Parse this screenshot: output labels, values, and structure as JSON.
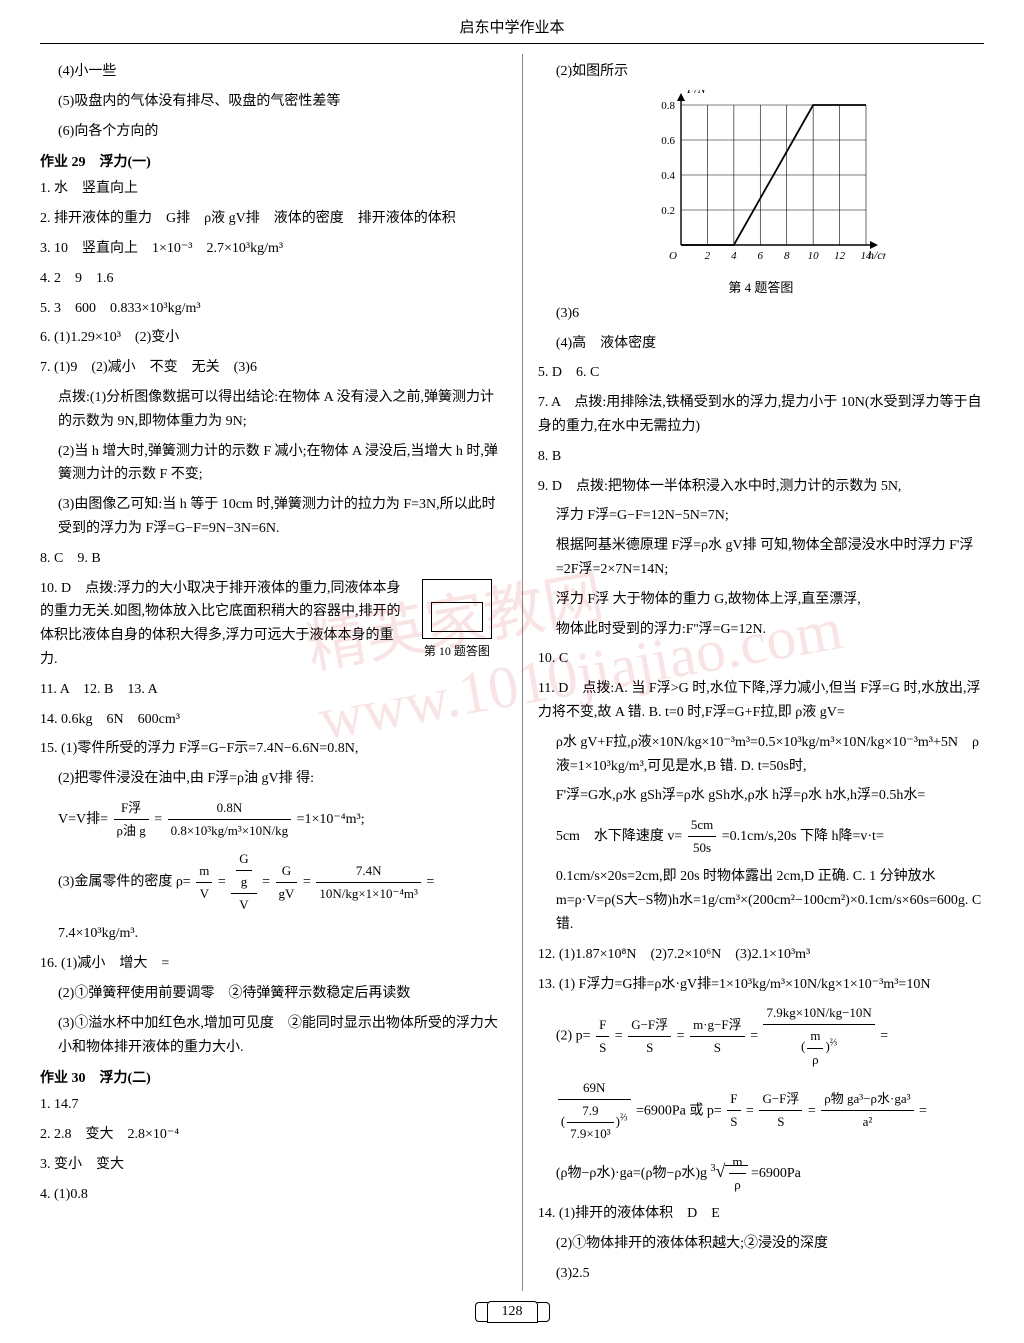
{
  "page_title": "启东中学作业本",
  "page_number": "128",
  "watermark": "精英家教网 www.1010jiajiao.com",
  "chart": {
    "type": "line",
    "xlabel": "h/cm",
    "ylabel": "F/N",
    "xticks": [
      0,
      2,
      4,
      6,
      8,
      10,
      12,
      14
    ],
    "yticks": [
      0,
      0.2,
      0.4,
      0.6,
      0.8
    ],
    "xlim": [
      0,
      14
    ],
    "ylim": [
      0,
      0.8
    ],
    "line_color": "#000000",
    "grid_color": "#000000",
    "bg_color": "#ffffff",
    "series": [
      {
        "x": 0,
        "y": 0
      },
      {
        "x": 4,
        "y": 0
      },
      {
        "x": 10,
        "y": 0.8
      },
      {
        "x": 14,
        "y": 0.8
      }
    ],
    "caption": "第 4 题答图"
  },
  "left": {
    "l01": "(4)小一些",
    "l02": "(5)吸盘内的气体没有排尽、吸盘的气密性差等",
    "l03": "(6)向各个方向的",
    "h29": "作业 29　浮力(一)",
    "a01": "1. 水　竖直向上",
    "a02": "2. 排开液体的重力　G排　ρ液 gV排　液体的密度　排开液体的体积",
    "a03": "3. 10　竖直向上　1×10⁻³　2.7×10³kg/m³",
    "a04": "4. 2　9　1.6",
    "a05": "5. 3　600　0.833×10³kg/m³",
    "a06": "6. (1)1.29×10³　(2)变小",
    "a07": "7. (1)9　(2)减小　不变　无关　(3)6",
    "a07p1": "点拨:(1)分析图像数据可以得出结论:在物体 A 没有浸入之前,弹簧测力计的示数为 9N,即物体重力为 9N;",
    "a07p2": "(2)当 h 增大时,弹簧测力计的示数 F 减小;在物体 A 浸没后,当增大 h 时,弹簧测力计的示数 F 不变;",
    "a07p3": "(3)由图像乙可知:当 h 等于 10cm 时,弹簧测力计的拉力为 F=3N,所以此时受到的浮力为 F浮=G−F=9N−3N=6N.",
    "a08": "8. C　9. B",
    "a10": "10. D　点拨:浮力的大小取决于排开液体的重力,同液体本身的重力无关.如图,物体放入比它底面积稍大的容器中,排开的体积比液体自身的体积大得多,浮力可远大于液体本身的重力.",
    "fig10cap": "第 10 题答图",
    "a11": "11. A　12. B　13. A",
    "a14": "14. 0.6kg　6N　600cm³",
    "a15_1": "15. (1)零件所受的浮力 F浮=G−F示=7.4N−6.6N=0.8N,",
    "a15_2": "(2)把零件浸没在油中,由 F浮=ρ油 gV排 得:",
    "a15_2v_lhs": "V=V排=",
    "a15_2v_f1n": "F浮",
    "a15_2v_f1d": "ρ油 g",
    "a15_2v_eq": "=",
    "a15_2v_f2n": "0.8N",
    "a15_2v_f2d": "0.8×10³kg/m³×10N/kg",
    "a15_2v_rhs": "=1×10⁻⁴m³;",
    "a15_3_lhs": "(3)金属零件的密度 ρ=",
    "a15_3_f1n": "m",
    "a15_3_f1d": "V",
    "a15_3_eq1": "=",
    "a15_3_f2an": "G",
    "a15_3_f2ad": "g",
    "a15_3_f2bd": "V",
    "a15_3_eq2": "=",
    "a15_3_f3n": "G",
    "a15_3_f3d": "gV",
    "a15_3_eq3": "=",
    "a15_3_f4n": "7.4N",
    "a15_3_f4d": "10N/kg×1×10⁻⁴m³",
    "a15_3_rhs": "=",
    "a15_3_res": "7.4×10³kg/m³.",
    "a16_1": "16. (1)减小　增大　=",
    "a16_2": "(2)①弹簧秤使用前要调零　②待弹簧秤示数稳定后再读数",
    "a16_3": "(3)①溢水杯中加红色水,增加可见度　②能同时显示出物体所受的浮力大小和物体排开液体的重力大小.",
    "h30": "作业 30　浮力(二)",
    "b01": "1. 14.7",
    "b02": "2. 2.8　变大　2.8×10⁻⁴",
    "b03": "3. 变小　变大",
    "b04": "4. (1)0.8"
  },
  "right": {
    "r02": "(2)如图所示",
    "r03": "(3)6",
    "r04": "(4)高　液体密度",
    "r05": "5. D　6. C",
    "r07": "7. A　点拨:用排除法,铁桶受到水的浮力,提力小于 10N(水受到浮力等于自身的重力,在水中无需拉力)",
    "r08": "8. B",
    "r09a": "9. D　点拨:把物体一半体积浸入水中时,测力计的示数为 5N,",
    "r09b": "浮力 F浮=G−F=12N−5N=7N;",
    "r09c": "根据阿基米德原理 F浮=ρ水 gV排 可知,物体全部浸没水中时浮力 F'浮=2F浮=2×7N=14N;",
    "r09d": "浮力 F浮 大于物体的重力 G,故物体上浮,直至漂浮,",
    "r09e": "物体此时受到的浮力:F''浮=G=12N.",
    "r10": "10. C",
    "r11a": "11. D　点拨:A. 当 F浮>G 时,水位下降,浮力减小,但当 F浮=G 时,水放出,浮力将不变,故 A 错. B. t=0 时,F浮=G+F拉,即 ρ液 gV=",
    "r11b": "ρ水 gV+F拉,ρ液×10N/kg×10⁻³m³=0.5×10³kg/m³×10N/kg×10⁻³m³+5N　ρ液=1×10³kg/m³,可见是水,B 错. D. t=50s时,",
    "r11c": "F'浮=G水,ρ水 gSh浮=ρ水 gSh水,ρ水 h浮=ρ水 h水,h浮=0.5h水=",
    "r11d_lhs": "5cm　水下降速度 v=",
    "r11d_n": "5cm",
    "r11d_d": "50s",
    "r11d_rhs": "=0.1cm/s,20s 下降 h降=v·t=",
    "r11e": "0.1cm/s×20s=2cm,即 20s 时物体露出 2cm,D 正确. C. 1 分钟放水 m=ρ·V=ρ(S大−S物)h水=1g/cm³×(200cm²−100cm²)×0.1cm/s×60s=600g. C 错.",
    "r12": "12. (1)1.87×10⁸N　(2)7.2×10⁶N　(3)2.1×10³m³",
    "r13_1a": "13. (1) F浮力=G排=ρ水·gV排=1×10³kg/m³×10N/kg×1×10⁻³m³=10N",
    "r13_2_lhs": "(2) p=",
    "r13_2_f1n": "F",
    "r13_2_f1d": "S",
    "r13_2_eq1": "=",
    "r13_2_f2n": "G−F浮",
    "r13_2_f2d": "S",
    "r13_2_eq2": "=",
    "r13_2_f3n": "m·g−F浮",
    "r13_2_f3d": "S",
    "r13_2_eq3": "=",
    "r13_2_f4n": "7.9kg×10N/kg−10N",
    "r13_2_f4d_open": "(",
    "r13_2_f4d_in": "m",
    "r13_2_f4d_ind": "ρ",
    "r13_2_f4d_close": ")",
    "r13_2_f4d_exp": "⅔",
    "r13_2_rhs": "=",
    "r13_3_f1n": "69N",
    "r13_3_f1d_open": "(",
    "r13_3_f1d_in": "7.9",
    "r13_3_f1d_ind": "7.9×10³",
    "r13_3_f1d_close": ")",
    "r13_3_f1d_exp": "⅔",
    "r13_3_mid": "=6900Pa 或 p=",
    "r13_3_f2n": "F",
    "r13_3_f2d": "S",
    "r13_3_eq1": "=",
    "r13_3_f3n": "G−F浮",
    "r13_3_f3d": "S",
    "r13_3_eq2": "=",
    "r13_3_f4n": "ρ物 ga³−ρ水·ga³",
    "r13_3_f4d": "a²",
    "r13_3_rhs": "=",
    "r13_4_lhs": "(ρ物−ρ水)·ga=(ρ物−ρ水)g",
    "r13_4_root_n": "m",
    "r13_4_root_d": "ρ",
    "r13_4_rhs": "=6900Pa",
    "r14_1": "14. (1)排开的液体体积　D　E",
    "r14_2": "(2)①物体排开的液体体积越大;②浸没的深度",
    "r14_3": "(3)2.5"
  }
}
